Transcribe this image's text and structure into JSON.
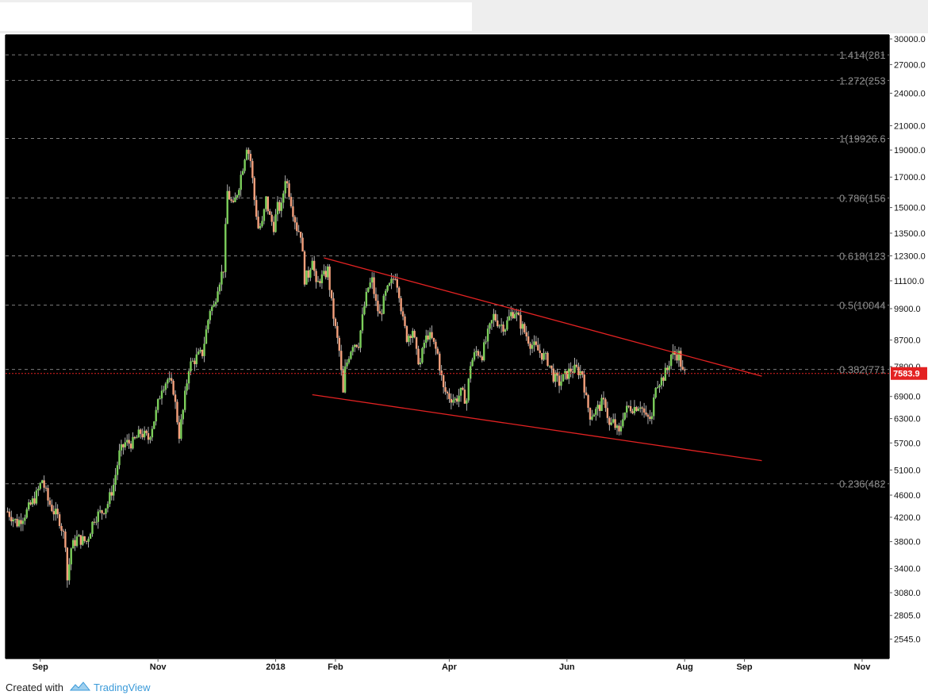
{
  "footer": {
    "created_with": "Created with",
    "brand": "TradingView"
  },
  "chart_data": {
    "type": "candlestick",
    "y_scale": "log",
    "ylim": [
      2350,
      30500
    ],
    "y_ticks": [
      "30000.0",
      "27000.0",
      "24000.0",
      "21000.0",
      "19000.0",
      "17000.0",
      "15000.0",
      "13500.0",
      "12300.0",
      "11100.0",
      "9900.0",
      "8700.0",
      "7800.0",
      "6900.0",
      "6300.0",
      "5700.0",
      "5100.0",
      "4600.0",
      "4200.0",
      "3800.0",
      "3400.0",
      "3080.0",
      "2805.0",
      "2545.0"
    ],
    "x_range": [
      "2017-08-14",
      "2018-11-15"
    ],
    "x_ticks": [
      {
        "label": "Sep",
        "date": "2017-09-01",
        "bold": false
      },
      {
        "label": "Nov",
        "date": "2017-11-01",
        "bold": false
      },
      {
        "label": "2018",
        "date": "2018-01-01",
        "bold": true
      },
      {
        "label": "Feb",
        "date": "2018-02-01",
        "bold": false
      },
      {
        "label": "Apr",
        "date": "2018-04-01",
        "bold": false
      },
      {
        "label": "Jun",
        "date": "2018-06-01",
        "bold": false
      },
      {
        "label": "Aug",
        "date": "2018-08-01",
        "bold": false
      },
      {
        "label": "Sep",
        "date": "2018-09-01",
        "bold": false
      },
      {
        "label": "Nov",
        "date": "2018-11-01",
        "bold": false
      }
    ],
    "fib_levels": [
      {
        "label": "1.414(281",
        "value": 28100
      },
      {
        "label": "1.272(253",
        "value": 25300
      },
      {
        "label": "1(19926.6",
        "value": 19926.6
      },
      {
        "label": "0.786(156",
        "value": 15600
      },
      {
        "label": "0.618(123",
        "value": 12300
      },
      {
        "label": "0.5(10044",
        "value": 10044
      },
      {
        "label": "0.382(771",
        "value": 7710
      },
      {
        "label": "0.236(482",
        "value": 4820
      }
    ],
    "last_price": {
      "label": "7583.9",
      "value": 7583.9
    },
    "trend_lines": [
      {
        "name": "upper",
        "from": {
          "date": "2018-01-26",
          "price": 12200
        },
        "to": {
          "date": "2018-09-10",
          "price": 7500
        }
      },
      {
        "name": "lower",
        "from": {
          "date": "2018-01-20",
          "price": 6950
        },
        "to": {
          "date": "2018-09-10",
          "price": 5300
        }
      }
    ],
    "price_path": [
      [
        "2017-08-15",
        4300
      ],
      [
        "2017-08-20",
        4100
      ],
      [
        "2017-08-25",
        4300
      ],
      [
        "2017-08-30",
        4600
      ],
      [
        "2017-09-02",
        4900
      ],
      [
        "2017-09-05",
        4500
      ],
      [
        "2017-09-08",
        4300
      ],
      [
        "2017-09-11",
        4150
      ],
      [
        "2017-09-14",
        3800
      ],
      [
        "2017-09-15",
        3250
      ],
      [
        "2017-09-17",
        3700
      ],
      [
        "2017-09-20",
        3850
      ],
      [
        "2017-09-25",
        3800
      ],
      [
        "2017-09-29",
        4200
      ],
      [
        "2017-10-03",
        4300
      ],
      [
        "2017-10-06",
        4450
      ],
      [
        "2017-10-09",
        4800
      ],
      [
        "2017-10-12",
        5450
      ],
      [
        "2017-10-15",
        5700
      ],
      [
        "2017-10-19",
        5700
      ],
      [
        "2017-10-23",
        5950
      ],
      [
        "2017-10-27",
        5800
      ],
      [
        "2017-10-31",
        6450
      ],
      [
        "2017-11-03",
        7200
      ],
      [
        "2017-11-06",
        7400
      ],
      [
        "2017-11-09",
        7100
      ],
      [
        "2017-11-12",
        5900
      ],
      [
        "2017-11-14",
        6500
      ],
      [
        "2017-11-17",
        7800
      ],
      [
        "2017-11-21",
        8100
      ],
      [
        "2017-11-24",
        8250
      ],
      [
        "2017-11-28",
        9900
      ],
      [
        "2017-11-30",
        10000
      ],
      [
        "2017-12-02",
        10900
      ],
      [
        "2017-12-05",
        11700
      ],
      [
        "2017-12-07",
        16000
      ],
      [
        "2017-12-10",
        15000
      ],
      [
        "2017-12-13",
        16500
      ],
      [
        "2017-12-15",
        17800
      ],
      [
        "2017-12-17",
        19400
      ],
      [
        "2017-12-19",
        18200
      ],
      [
        "2017-12-21",
        15500
      ],
      [
        "2017-12-23",
        13800
      ],
      [
        "2017-12-25",
        14000
      ],
      [
        "2017-12-27",
        15500
      ],
      [
        "2017-12-29",
        14400
      ],
      [
        "2017-12-31",
        13900
      ],
      [
        "2018-01-02",
        15000
      ],
      [
        "2018-01-04",
        15000
      ],
      [
        "2018-01-06",
        17000
      ],
      [
        "2018-01-08",
        16000
      ],
      [
        "2018-01-10",
        14800
      ],
      [
        "2018-01-12",
        13800
      ],
      [
        "2018-01-14",
        13500
      ],
      [
        "2018-01-16",
        11200
      ],
      [
        "2018-01-18",
        11400
      ],
      [
        "2018-01-20",
        12300
      ],
      [
        "2018-01-22",
        10800
      ],
      [
        "2018-01-24",
        11200
      ],
      [
        "2018-01-26",
        11300
      ],
      [
        "2018-01-28",
        11600
      ],
      [
        "2018-01-30",
        10100
      ],
      [
        "2018-02-01",
        9100
      ],
      [
        "2018-02-03",
        8300
      ],
      [
        "2018-02-05",
        6950
      ],
      [
        "2018-02-06",
        7700
      ],
      [
        "2018-02-08",
        8200
      ],
      [
        "2018-02-10",
        8600
      ],
      [
        "2018-02-13",
        8600
      ],
      [
        "2018-02-16",
        10000
      ],
      [
        "2018-02-18",
        10800
      ],
      [
        "2018-02-20",
        11100
      ],
      [
        "2018-02-22",
        10100
      ],
      [
        "2018-02-24",
        9600
      ],
      [
        "2018-02-27",
        10500
      ],
      [
        "2018-03-02",
        11000
      ],
      [
        "2018-03-04",
        11400
      ],
      [
        "2018-03-06",
        10600
      ],
      [
        "2018-03-08",
        9400
      ],
      [
        "2018-03-10",
        8800
      ],
      [
        "2018-03-13",
        9100
      ],
      [
        "2018-03-15",
        8200
      ],
      [
        "2018-03-17",
        7900
      ],
      [
        "2018-03-19",
        8600
      ],
      [
        "2018-03-21",
        8900
      ],
      [
        "2018-03-23",
        8700
      ],
      [
        "2018-03-26",
        8200
      ],
      [
        "2018-03-29",
        7100
      ],
      [
        "2018-04-01",
        6900
      ],
      [
        "2018-04-04",
        6800
      ],
      [
        "2018-04-07",
        7000
      ],
      [
        "2018-04-10",
        6800
      ],
      [
        "2018-04-12",
        7900
      ],
      [
        "2018-04-15",
        8300
      ],
      [
        "2018-04-18",
        8200
      ],
      [
        "2018-04-21",
        8900
      ],
      [
        "2018-04-24",
        9600
      ],
      [
        "2018-04-27",
        9300
      ],
      [
        "2018-04-30",
        9200
      ],
      [
        "2018-05-03",
        9700
      ],
      [
        "2018-05-05",
        9800
      ],
      [
        "2018-05-08",
        9300
      ],
      [
        "2018-05-10",
        9000
      ],
      [
        "2018-05-13",
        8600
      ],
      [
        "2018-05-16",
        8400
      ],
      [
        "2018-05-19",
        8200
      ],
      [
        "2018-05-22",
        8000
      ],
      [
        "2018-05-25",
        7500
      ],
      [
        "2018-05-28",
        7300
      ],
      [
        "2018-05-31",
        7500
      ],
      [
        "2018-06-03",
        7700
      ],
      [
        "2018-06-06",
        7700
      ],
      [
        "2018-06-09",
        7600
      ],
      [
        "2018-06-11",
        6800
      ],
      [
        "2018-06-13",
        6400
      ],
      [
        "2018-06-16",
        6500
      ],
      [
        "2018-06-19",
        6700
      ],
      [
        "2018-06-21",
        6700
      ],
      [
        "2018-06-23",
        6100
      ],
      [
        "2018-06-25",
        6200
      ],
      [
        "2018-06-28",
        5900
      ],
      [
        "2018-06-30",
        6400
      ],
      [
        "2018-07-03",
        6600
      ],
      [
        "2018-07-06",
        6600
      ],
      [
        "2018-07-09",
        6700
      ],
      [
        "2018-07-12",
        6300
      ],
      [
        "2018-07-15",
        6300
      ],
      [
        "2018-07-17",
        7300
      ],
      [
        "2018-07-20",
        7400
      ],
      [
        "2018-07-23",
        7700
      ],
      [
        "2018-07-25",
        8200
      ],
      [
        "2018-07-27",
        8200
      ],
      [
        "2018-07-29",
        8200
      ],
      [
        "2018-07-31",
        7600
      ],
      [
        "2018-08-01",
        7583.9
      ]
    ]
  }
}
